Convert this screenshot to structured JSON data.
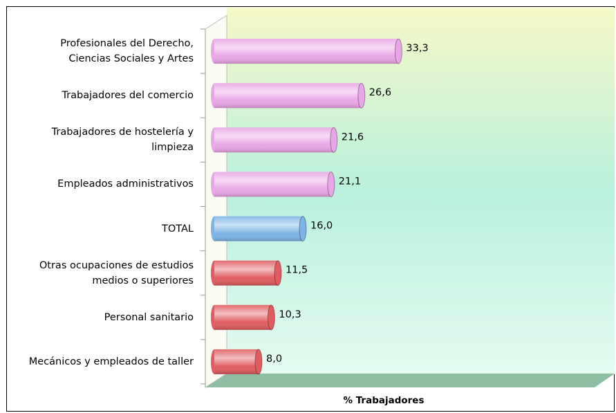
{
  "chart_data": {
    "type": "bar",
    "orientation": "horizontal",
    "xlabel": "% Trabajadores",
    "categories": [
      "Profesionales del Derecho, Ciencias Sociales y Artes",
      "Trabajadores del comercio",
      "Trabajadores de hostelería y limpieza",
      "Empleados administrativos",
      "TOTAL",
      "Otras ocupaciones de estudios medios o superiores",
      "Personal sanitario",
      "Mecánicos y empleados de taller"
    ],
    "values": [
      33.3,
      26.6,
      21.6,
      21.1,
      16.0,
      11.5,
      10.3,
      8.0
    ],
    "value_labels": [
      "33,3",
      "26,6",
      "21,6",
      "21,1",
      "16,0",
      "11,5",
      "10,3",
      "8,0"
    ],
    "colors": [
      "#e9a6e6",
      "#e9a6e6",
      "#e9a6e6",
      "#e9a6e6",
      "#7db4e6",
      "#e05c60",
      "#e05c60",
      "#e05c60"
    ],
    "xlim": [
      0,
      70
    ]
  }
}
